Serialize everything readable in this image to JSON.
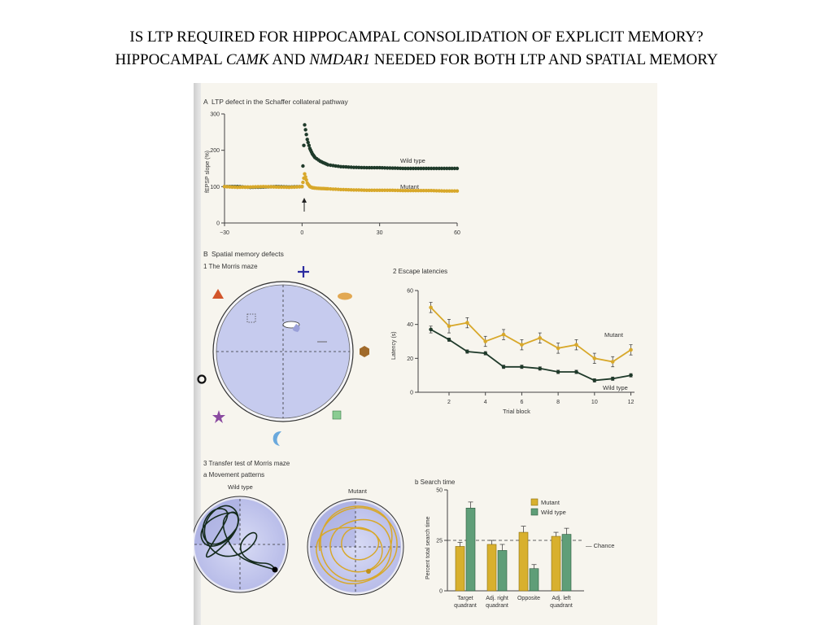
{
  "slide": {
    "title_line1": "IS LTP REQUIRED FOR HIPPOCAMPAL CONSOLIDATION OF EXPLICIT MEMORY?",
    "title_line2_a": "HIPPOCAMPAL ",
    "title_line2_b": "CAMK",
    "title_line2_c": " AND ",
    "title_line2_d": "NMDAR1",
    "title_line2_e": " NEEDED FOR BOTH LTP AND SPATIAL MEMORY"
  },
  "colors": {
    "wild_type": "#1f3a2a",
    "mutant": "#d8a82a",
    "pool": "#c9cdef",
    "wt_bar": "#5f9e78"
  },
  "panelA": {
    "label": "A",
    "title": "LTP defect in the Schaffer collateral pathway",
    "ylabel": "fEPSP slope (%)",
    "yticks": [
      "300",
      "200",
      "100",
      "0"
    ],
    "xticks": [
      "−30",
      "0",
      "30",
      "60"
    ],
    "label_wt": "Wild type",
    "label_mut": "Mutant"
  },
  "panelB": {
    "label": "B",
    "title": "Spatial memory defects",
    "sub1": "1  The Morris maze",
    "sub2": "2  Escape latencies",
    "sub3": "3  Transfer test of Morris maze",
    "sub3a": "a  Movement patterns",
    "sub3b": "b  Search time",
    "wt_label": "Wild type",
    "mut_label": "Mutant"
  },
  "latency": {
    "ylabel": "Latency (s)",
    "xlabel": "Trial block",
    "yticks": [
      "60",
      "40",
      "20",
      "0"
    ],
    "xticks": [
      "2",
      "4",
      "6",
      "8",
      "10",
      "12"
    ],
    "label_mut": "Mutant",
    "label_wt": "Wild type"
  },
  "search": {
    "ylabel": "Percent total search time",
    "yticks": [
      "50",
      "25",
      "0"
    ],
    "legend_mut": "Mutant",
    "legend_wt": "Wild type",
    "chance": "Chance",
    "cat1a": "Target",
    "cat1b": "quadrant",
    "cat2a": "Adj. right",
    "cat2b": "quadrant",
    "cat3a": "Opposite",
    "cat4a": "Adj. left",
    "cat4b": "quadrant"
  },
  "chart_data": [
    {
      "type": "scatter",
      "title": "LTP defect in the Schaffer collateral pathway",
      "ylabel": "fEPSP slope (%)",
      "xlim": [
        -30,
        60
      ],
      "ylim": [
        0,
        300
      ],
      "series": [
        {
          "name": "Wild type",
          "x": [
            -30,
            -25,
            -20,
            -15,
            -10,
            -5,
            0,
            1,
            2,
            3,
            4,
            5,
            7,
            10,
            15,
            20,
            25,
            30,
            35,
            40,
            45,
            50,
            55,
            60
          ],
          "y": [
            100,
            100,
            98,
            99,
            100,
            99,
            100,
            270,
            230,
            205,
            190,
            180,
            170,
            160,
            155,
            153,
            152,
            152,
            151,
            150,
            150,
            150,
            150,
            150
          ]
        },
        {
          "name": "Mutant",
          "x": [
            -30,
            -25,
            -20,
            -15,
            -10,
            -5,
            0,
            1,
            2,
            3,
            4,
            5,
            7,
            10,
            15,
            20,
            25,
            30,
            35,
            40,
            45,
            50,
            55,
            60
          ],
          "y": [
            100,
            98,
            99,
            100,
            99,
            98,
            100,
            135,
            110,
            100,
            97,
            96,
            95,
            94,
            92,
            91,
            90,
            90,
            90,
            89,
            89,
            89,
            88,
            88
          ]
        }
      ]
    },
    {
      "type": "line",
      "title": "Escape latencies",
      "xlabel": "Trial block",
      "ylabel": "Latency (s)",
      "x": [
        1,
        2,
        3,
        4,
        5,
        6,
        7,
        8,
        9,
        10,
        11,
        12
      ],
      "ylim": [
        0,
        60
      ],
      "series": [
        {
          "name": "Mutant",
          "values": [
            50,
            39,
            41,
            30,
            34,
            28,
            32,
            26,
            28,
            20,
            18,
            25
          ],
          "err": [
            3,
            4,
            3,
            3,
            3,
            3,
            3,
            3,
            3,
            3,
            3,
            3
          ]
        },
        {
          "name": "Wild type",
          "values": [
            37,
            31,
            24,
            23,
            15,
            15,
            14,
            12,
            12,
            7,
            8,
            10
          ],
          "err": [
            2,
            1,
            1,
            1,
            1,
            1,
            1,
            1,
            1,
            1,
            1,
            1
          ]
        }
      ]
    },
    {
      "type": "bar",
      "title": "Search time",
      "ylabel": "Percent total search time",
      "categories": [
        "Target quadrant",
        "Adj. right quadrant",
        "Opposite",
        "Adj. left quadrant"
      ],
      "ylim": [
        0,
        50
      ],
      "chance": 25,
      "series": [
        {
          "name": "Mutant",
          "values": [
            22,
            23,
            29,
            27
          ],
          "err": [
            2,
            2,
            3,
            2
          ]
        },
        {
          "name": "Wild type",
          "values": [
            41,
            20,
            11,
            28
          ],
          "err": [
            3,
            3,
            2,
            3
          ]
        }
      ]
    }
  ]
}
